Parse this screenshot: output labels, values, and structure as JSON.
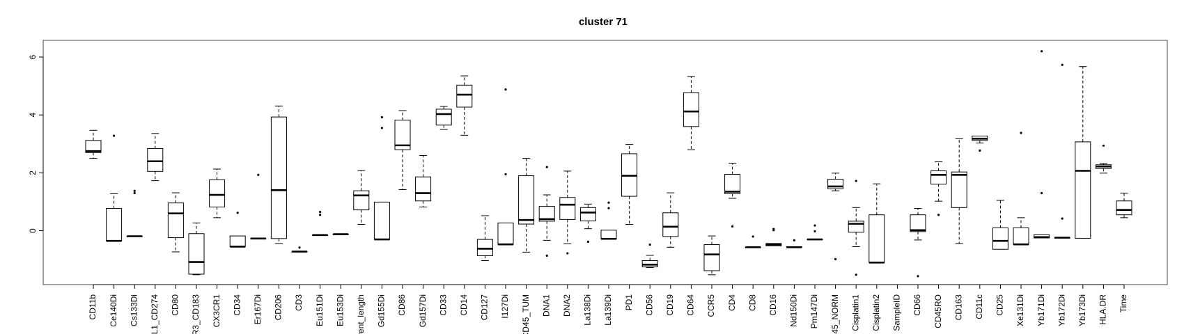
{
  "chart_data": {
    "type": "boxplot",
    "title": "cluster 71",
    "xlabel": "",
    "ylabel": "",
    "ylim": [
      -1.9,
      6.4
    ],
    "yticks": [
      0,
      2,
      4,
      6
    ],
    "grid": false,
    "legend": "none",
    "categories": [
      "CD11b",
      "Ce140Di",
      "Cs133Di",
      "L1_CD274",
      "CD80",
      "R3_CD183",
      "CX3CR1",
      "CD34",
      "Er167Di",
      "CD206",
      "CD3",
      "Eu151Di",
      "Eu153Di",
      "vent_length",
      "Gd155Di",
      "CD86",
      "Gd157Di",
      "CD33",
      "CD14",
      "CD127",
      "I127Di",
      "CD45_TUM",
      "DNA1",
      "DNA2",
      "La138Di",
      "La139Di",
      "PD1",
      "CD56",
      "CD19",
      "CD64",
      "CCR5",
      "CD4",
      "CD8",
      "CD16",
      "Nd150Di",
      "Pm147Di",
      "45_NORM",
      "Cisplatin1",
      "Cisplatin2",
      "SampleID",
      "CD66",
      "CD45RO",
      "CD163",
      "CD11c",
      "CD25",
      "Xe131Di",
      "Yb171Di",
      "Yb172Di",
      "Yb173Di",
      "HLA.DR",
      "Time"
    ],
    "boxes": [
      {
        "min": 2.5,
        "q1": 2.7,
        "median": 2.75,
        "q3": 3.12,
        "max": 3.47,
        "outliers": []
      },
      {
        "min": -0.35,
        "q1": -0.35,
        "median": -0.35,
        "q3": 0.77,
        "max": 1.28,
        "outliers": [
          3.28
        ]
      },
      {
        "min": -0.19,
        "q1": -0.19,
        "median": -0.19,
        "q3": -0.19,
        "max": -0.19,
        "outliers": [
          1.3,
          1.38
        ]
      },
      {
        "min": 1.73,
        "q1": 2.05,
        "median": 2.4,
        "q3": 2.84,
        "max": 3.36,
        "outliers": []
      },
      {
        "min": -0.73,
        "q1": -0.24,
        "median": 0.6,
        "q3": 0.96,
        "max": 1.31,
        "outliers": []
      },
      {
        "min": -1.52,
        "q1": -1.5,
        "median": -1.08,
        "q3": -0.1,
        "max": 0.27,
        "outliers": []
      },
      {
        "min": 0.45,
        "q1": 0.82,
        "median": 1.24,
        "q3": 1.76,
        "max": 2.13,
        "outliers": []
      },
      {
        "min": -0.55,
        "q1": -0.55,
        "median": -0.55,
        "q3": -0.18,
        "max": -0.18,
        "outliers": [
          0.62
        ]
      },
      {
        "min": -0.27,
        "q1": -0.27,
        "median": -0.27,
        "q3": -0.27,
        "max": -0.27,
        "outliers": [
          1.93
        ]
      },
      {
        "min": -0.44,
        "q1": -0.27,
        "median": 1.4,
        "q3": 3.93,
        "max": 4.31,
        "outliers": []
      },
      {
        "min": -0.72,
        "q1": -0.72,
        "median": -0.72,
        "q3": -0.72,
        "max": -0.72,
        "outliers": [
          -0.58
        ]
      },
      {
        "min": -0.15,
        "q1": -0.15,
        "median": -0.15,
        "q3": -0.15,
        "max": -0.15,
        "outliers": [
          0.55,
          0.65
        ]
      },
      {
        "min": -0.12,
        "q1": -0.12,
        "median": -0.12,
        "q3": -0.12,
        "max": -0.12,
        "outliers": []
      },
      {
        "min": 0.22,
        "q1": 0.72,
        "median": 1.22,
        "q3": 1.38,
        "max": 2.08,
        "outliers": []
      },
      {
        "min": -0.3,
        "q1": -0.3,
        "median": -0.3,
        "q3": 0.99,
        "max": 0.99,
        "outliers": [
          3.55,
          3.92
        ]
      },
      {
        "min": 1.42,
        "q1": 2.8,
        "median": 2.95,
        "q3": 3.82,
        "max": 4.15,
        "outliers": []
      },
      {
        "min": 0.82,
        "q1": 1.03,
        "median": 1.3,
        "q3": 1.86,
        "max": 2.6,
        "outliers": []
      },
      {
        "min": 3.5,
        "q1": 3.65,
        "median": 4.03,
        "q3": 4.2,
        "max": 4.3,
        "outliers": []
      },
      {
        "min": 3.3,
        "q1": 4.27,
        "median": 4.7,
        "q3": 5.03,
        "max": 5.35,
        "outliers": []
      },
      {
        "min": -1.03,
        "q1": -0.86,
        "median": -0.62,
        "q3": -0.3,
        "max": 0.52,
        "outliers": []
      },
      {
        "min": -0.47,
        "q1": -0.47,
        "median": -0.47,
        "q3": 0.27,
        "max": 0.27,
        "outliers": [
          1.95,
          4.88
        ]
      },
      {
        "min": -0.74,
        "q1": 0.23,
        "median": 0.37,
        "q3": 1.9,
        "max": 2.5,
        "outliers": []
      },
      {
        "min": -0.33,
        "q1": 0.33,
        "median": 0.4,
        "q3": 0.84,
        "max": 1.24,
        "outliers": [
          -0.86,
          2.2
        ]
      },
      {
        "min": -0.45,
        "q1": 0.39,
        "median": 0.9,
        "q3": 1.15,
        "max": 2.06,
        "outliers": [
          -0.78
        ]
      },
      {
        "min": 0.07,
        "q1": 0.34,
        "median": 0.63,
        "q3": 0.8,
        "max": 0.92,
        "outliers": [
          -0.38
        ]
      },
      {
        "min": -0.28,
        "q1": -0.28,
        "median": -0.28,
        "q3": 0.02,
        "max": 0.02,
        "outliers": [
          0.78,
          0.97
        ]
      },
      {
        "min": 0.22,
        "q1": 1.19,
        "median": 1.9,
        "q3": 2.66,
        "max": 2.98,
        "outliers": []
      },
      {
        "min": -1.27,
        "q1": -1.25,
        "median": -1.17,
        "q3": -1.03,
        "max": -0.85,
        "outliers": [
          -0.48
        ]
      },
      {
        "min": -0.57,
        "q1": -0.2,
        "median": 0.14,
        "q3": 0.62,
        "max": 1.31,
        "outliers": []
      },
      {
        "min": 2.8,
        "q1": 3.6,
        "median": 4.12,
        "q3": 4.77,
        "max": 5.33,
        "outliers": []
      },
      {
        "min": -1.52,
        "q1": -1.38,
        "median": -0.82,
        "q3": -0.48,
        "max": -0.18,
        "outliers": []
      },
      {
        "min": 1.12,
        "q1": 1.28,
        "median": 1.35,
        "q3": 1.95,
        "max": 2.33,
        "outliers": [
          0.15
        ]
      },
      {
        "min": -0.57,
        "q1": -0.57,
        "median": -0.57,
        "q3": -0.57,
        "max": -0.57,
        "outliers": [
          -0.2
        ]
      },
      {
        "min": -0.52,
        "q1": -0.52,
        "median": -0.48,
        "q3": -0.44,
        "max": -0.44,
        "outliers": [
          0.02,
          0.06
        ]
      },
      {
        "min": -0.57,
        "q1": -0.57,
        "median": -0.57,
        "q3": -0.55,
        "max": -0.55,
        "outliers": [
          -0.33
        ]
      },
      {
        "min": -0.3,
        "q1": -0.3,
        "median": -0.3,
        "q3": -0.3,
        "max": -0.3,
        "outliers": [
          -0.02,
          0.18
        ]
      },
      {
        "min": 1.38,
        "q1": 1.45,
        "median": 1.53,
        "q3": 1.78,
        "max": 1.99,
        "outliers": [
          -0.98
        ]
      },
      {
        "min": -0.55,
        "q1": -0.05,
        "median": 0.24,
        "q3": 0.33,
        "max": 0.8,
        "outliers": [
          -1.52,
          1.72
        ]
      },
      {
        "min": -1.1,
        "q1": -1.1,
        "median": -1.1,
        "q3": 0.55,
        "max": 1.62,
        "outliers": []
      },
      {
        "min": 0,
        "q1": 0,
        "median": 0,
        "q3": 0,
        "max": 0,
        "outliers": [],
        "empty": true
      },
      {
        "min": -0.32,
        "q1": -0.03,
        "median": 0.02,
        "q3": 0.55,
        "max": 0.77,
        "outliers": [
          -1.57
        ]
      },
      {
        "min": 1.02,
        "q1": 1.61,
        "median": 1.93,
        "q3": 2.07,
        "max": 2.38,
        "outliers": [
          0.55
        ]
      },
      {
        "min": -0.44,
        "q1": 0.8,
        "median": 1.93,
        "q3": 2.03,
        "max": 3.18,
        "outliers": []
      },
      {
        "min": 3.03,
        "q1": 3.12,
        "median": 3.18,
        "q3": 3.27,
        "max": 3.27,
        "outliers": [
          2.77
        ]
      },
      {
        "min": -0.64,
        "q1": -0.64,
        "median": -0.35,
        "q3": 0.1,
        "max": 1.05,
        "outliers": []
      },
      {
        "min": -0.47,
        "q1": -0.47,
        "median": -0.47,
        "q3": 0.1,
        "max": 0.45,
        "outliers": [
          3.38
        ]
      },
      {
        "min": -0.25,
        "q1": -0.25,
        "median": -0.22,
        "q3": -0.14,
        "max": -0.14,
        "outliers": [
          1.3,
          6.2
        ]
      },
      {
        "min": -0.24,
        "q1": -0.24,
        "median": -0.24,
        "q3": -0.24,
        "max": -0.24,
        "outliers": [
          0.42,
          5.73
        ]
      },
      {
        "min": -0.26,
        "q1": -0.26,
        "median": 2.07,
        "q3": 3.07,
        "max": 5.67,
        "outliers": []
      },
      {
        "min": 1.99,
        "q1": 2.15,
        "median": 2.22,
        "q3": 2.28,
        "max": 2.32,
        "outliers": [
          2.94
        ]
      },
      {
        "min": 0.45,
        "q1": 0.55,
        "median": 0.72,
        "q3": 1.03,
        "max": 1.3,
        "outliers": []
      }
    ]
  }
}
